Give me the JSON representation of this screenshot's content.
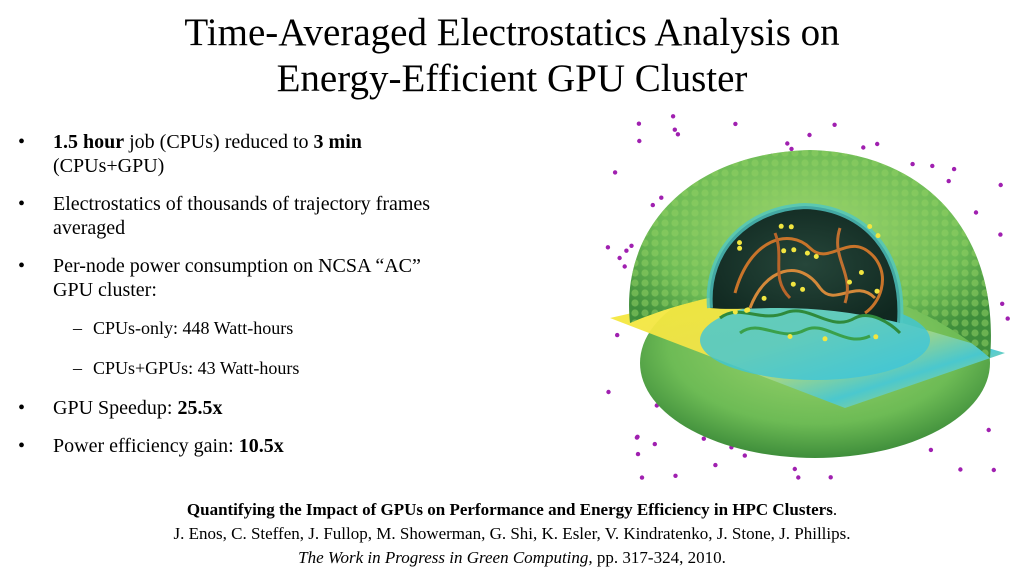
{
  "title": {
    "line1": "Time-Averaged Electrostatics Analysis on",
    "line2": "Energy-Efficient GPU Cluster"
  },
  "bullets": {
    "b1_bold_a": "1.5 hour",
    "b1_text_a": " job (CPUs) reduced to ",
    "b1_bold_b": "3 min",
    "b1_text_b": "(CPUs+GPU)",
    "b2_line1": "Electrostatics of thousands of trajectory frames",
    "b2_line2": "averaged",
    "b3_line1": "Per-node power consumption on NCSA “AC”",
    "b3_line2": "GPU cluster:",
    "sub1": "CPUs-only:  448 Watt-hours",
    "sub2": "CPUs+GPUs: 43 Watt-hours",
    "b4_text": "GPU Speedup: ",
    "b4_bold": "25.5x",
    "b5_text": "Power efficiency gain: ",
    "b5_bold": "10.5x",
    "bullet_glyph": "•",
    "dash_glyph": "–"
  },
  "citation": {
    "title": "Quantifying the Impact of GPUs on Performance and Energy Efficiency in HPC Clusters",
    "title_end": ".",
    "authors": "J. Enos, C. Steffen, J. Fullop, M. Showerman, G. Shi, K. Esler, V. Kindratenko, J. Stone, J. Phillips.",
    "venue": "The Work in Progress in Green Computing,",
    "pages": "  pp. 317-324, 2010."
  },
  "colors": {
    "protein": "#7cc35a",
    "protein_dark": "#4e9a3a",
    "cyan": "#3fc6d8",
    "plane_yellow": "#f4e83a",
    "rna_orange": "#c8742a",
    "ions": "#a020b0",
    "cavity": "#1d3a30"
  }
}
